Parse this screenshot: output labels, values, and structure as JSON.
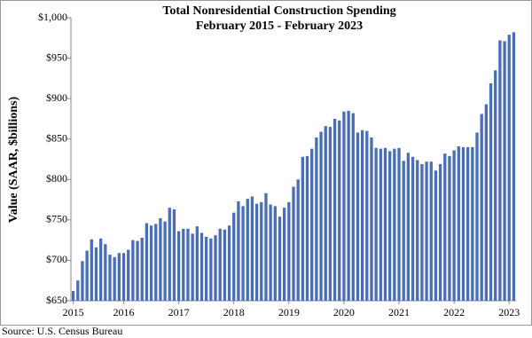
{
  "chart_data": {
    "type": "bar",
    "title": "Total Nonresidential Construction Spending",
    "subtitle": "February 2015 - February 2023",
    "y_label": "Value (SAAR, $billions)",
    "source": "Source:  U.S. Census Bureau",
    "color": "#4a6eb5",
    "categories": [
      "2015",
      null,
      null,
      null,
      null,
      null,
      null,
      null,
      null,
      null,
      null,
      "2016",
      null,
      null,
      null,
      null,
      null,
      null,
      null,
      null,
      null,
      null,
      null,
      "2017",
      null,
      null,
      null,
      null,
      null,
      null,
      null,
      null,
      null,
      null,
      null,
      "2018",
      null,
      null,
      null,
      null,
      null,
      null,
      null,
      null,
      null,
      null,
      null,
      "2019",
      null,
      null,
      null,
      null,
      null,
      null,
      null,
      null,
      null,
      null,
      null,
      "2020",
      null,
      null,
      null,
      null,
      null,
      null,
      null,
      null,
      null,
      null,
      null,
      "2021",
      null,
      null,
      null,
      null,
      null,
      null,
      null,
      null,
      null,
      null,
      null,
      "2022",
      null,
      null,
      null,
      null,
      null,
      null,
      null,
      null,
      null,
      null,
      null,
      "2023",
      null
    ],
    "values": [
      662,
      675,
      699,
      712,
      726,
      716,
      727,
      720,
      707,
      704,
      709,
      709,
      713,
      725,
      724,
      728,
      746,
      743,
      745,
      752,
      748,
      765,
      763,
      736,
      739,
      739,
      733,
      742,
      734,
      729,
      727,
      731,
      739,
      738,
      743,
      759,
      773,
      767,
      776,
      779,
      770,
      772,
      783,
      769,
      767,
      754,
      765,
      772,
      791,
      800,
      828,
      829,
      838,
      852,
      859,
      866,
      865,
      875,
      873,
      884,
      885,
      882,
      858,
      861,
      860,
      852,
      839,
      838,
      839,
      835,
      838,
      839,
      823,
      833,
      828,
      824,
      819,
      822,
      822,
      811,
      819,
      832,
      829,
      836,
      841,
      840,
      840,
      840,
      858,
      881,
      893,
      919,
      935,
      972,
      971,
      979,
      982
    ],
    "ylim": [
      650,
      1000
    ],
    "yticks": [
      {
        "value": 650,
        "label": "$650"
      },
      {
        "value": 700,
        "label": "$700"
      },
      {
        "value": 750,
        "label": "$750"
      },
      {
        "value": 800,
        "label": "$800"
      },
      {
        "value": 850,
        "label": "$850"
      },
      {
        "value": 900,
        "label": "$900"
      },
      {
        "value": 950,
        "label": "$950"
      },
      {
        "value": 1000,
        "label": "$1,000"
      }
    ],
    "grid": false
  }
}
